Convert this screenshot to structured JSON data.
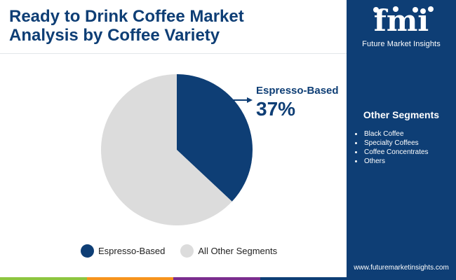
{
  "header": {
    "title_line1": "Ready to Drink Coffee Market",
    "title_line2": "Analysis by Coffee Variety"
  },
  "logo": {
    "text": "fmi",
    "caption": "Future Market Insights"
  },
  "side_panel": {
    "segments_title": "Other Segments",
    "segments": [
      "Black Coffee",
      "Specialty Coffees",
      "Coffee Concentrates",
      "Others"
    ],
    "website": "www.futuremarketinsights.com"
  },
  "callout": {
    "name": "Espresso-Based",
    "value": "37%"
  },
  "chart_data": {
    "type": "pie",
    "slices": [
      {
        "name": "Espresso-Based",
        "value": 37,
        "color": "#0e3e75"
      },
      {
        "name": "All Other Segments",
        "value": 63,
        "color": "#dcdcdc"
      }
    ],
    "legend_position": "bottom"
  },
  "colors": {
    "brand": "#0e3e75",
    "other": "#dcdcdc",
    "bottom_bar": [
      "#8dc63f",
      "#f7941d",
      "#7b2d8e",
      "#0e3e75"
    ]
  }
}
